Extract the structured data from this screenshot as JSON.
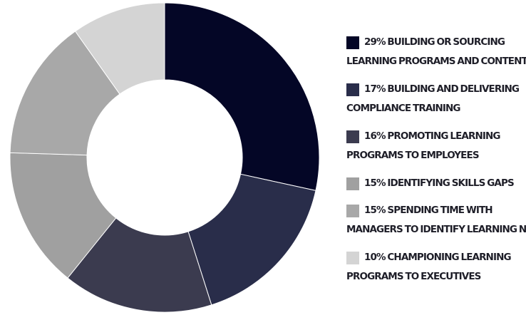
{
  "chart_data": {
    "type": "pie",
    "donut": true,
    "title": "",
    "legend_position": "right",
    "slices": [
      {
        "value": 29,
        "label_line1": "29% Building or sourcing",
        "label_line2": "learning programs and content",
        "color": "#040626"
      },
      {
        "value": 17,
        "label_line1": "17% Building and delivering",
        "label_line2": "compliance training",
        "color": "#292d4a"
      },
      {
        "value": 16,
        "label_line1": "16% Promoting learning",
        "label_line2": "programs to employees",
        "color": "#3b3b4f"
      },
      {
        "value": 15,
        "label_line1": "15% Identifying skills gaps",
        "label_line2": "",
        "color": "#a0a0a0"
      },
      {
        "value": 15,
        "label_line1": "15% Spending time with",
        "label_line2": "managers to identify learning needs",
        "color": "#a8a8a8"
      },
      {
        "value": 10,
        "label_line1": "10% Championing learning",
        "label_line2": "programs to executives",
        "color": "#d4d4d4"
      }
    ]
  }
}
